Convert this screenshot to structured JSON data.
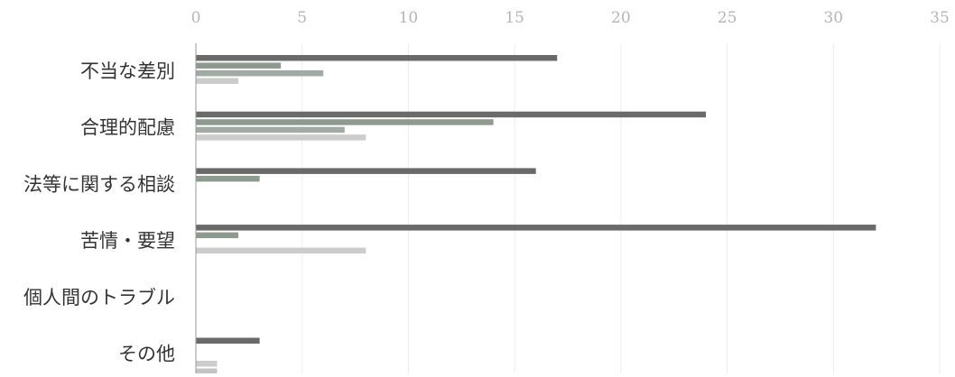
{
  "chart_data": {
    "type": "bar",
    "orientation": "horizontal",
    "categories": [
      "不当な差別",
      "合理的配慮",
      "法等に関する相談",
      "苦情・要望",
      "個人間のトラブル",
      "その他"
    ],
    "series": [
      {
        "values": [
          17,
          24,
          16,
          32,
          0,
          3
        ],
        "color": "#6a6a6a"
      },
      {
        "values": [
          4,
          14,
          3,
          2,
          0,
          0
        ],
        "color": "#8e9a90"
      },
      {
        "values": [
          6,
          7,
          0,
          0,
          0,
          0
        ],
        "color": "#a2aaa4"
      },
      {
        "values": [
          2,
          8,
          0,
          8,
          0,
          1
        ],
        "color": "#cccccc"
      },
      {
        "values": [
          0,
          0,
          0,
          0,
          0,
          1
        ],
        "color": "#c4c4c4"
      }
    ],
    "xlim": [
      0,
      35
    ],
    "x_ticks": [
      "0",
      "5",
      "10",
      "15",
      "20",
      "25",
      "30",
      "35"
    ],
    "grid": true,
    "legend": "none"
  }
}
